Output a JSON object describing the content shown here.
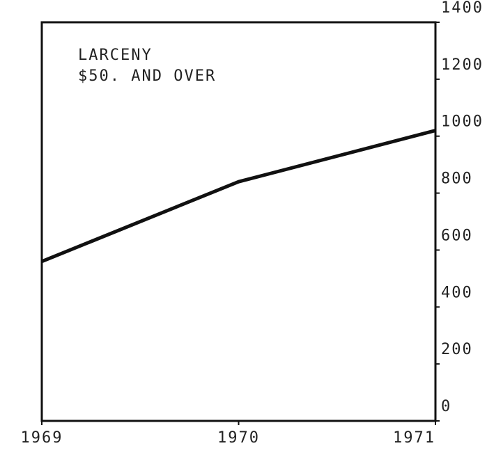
{
  "chart_data": {
    "type": "line",
    "title": "LARCENY",
    "subtitle": "$50. AND OVER",
    "x": [
      1969,
      1970,
      1971
    ],
    "series": [
      {
        "name": "Larceny $50. and over",
        "color": "#111111",
        "values": [
          560,
          840,
          1020
        ]
      }
    ],
    "xlim": [
      1969,
      1971
    ],
    "xticks": [
      1969,
      1970,
      1971
    ],
    "ylim": [
      0,
      1400
    ],
    "yticks": [
      0,
      200,
      400,
      600,
      800,
      1000,
      1200,
      1400
    ],
    "y_axis_side": "right",
    "grid": false
  }
}
